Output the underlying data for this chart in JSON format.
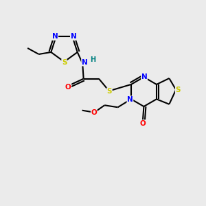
{
  "background_color": "#ebebeb",
  "bond_color": "#000000",
  "atom_colors": {
    "N": "#0000ff",
    "S": "#cccc00",
    "O": "#ff0000",
    "C": "#000000",
    "H": "#008080"
  },
  "figsize": [
    3.0,
    3.0
  ],
  "dpi": 100
}
